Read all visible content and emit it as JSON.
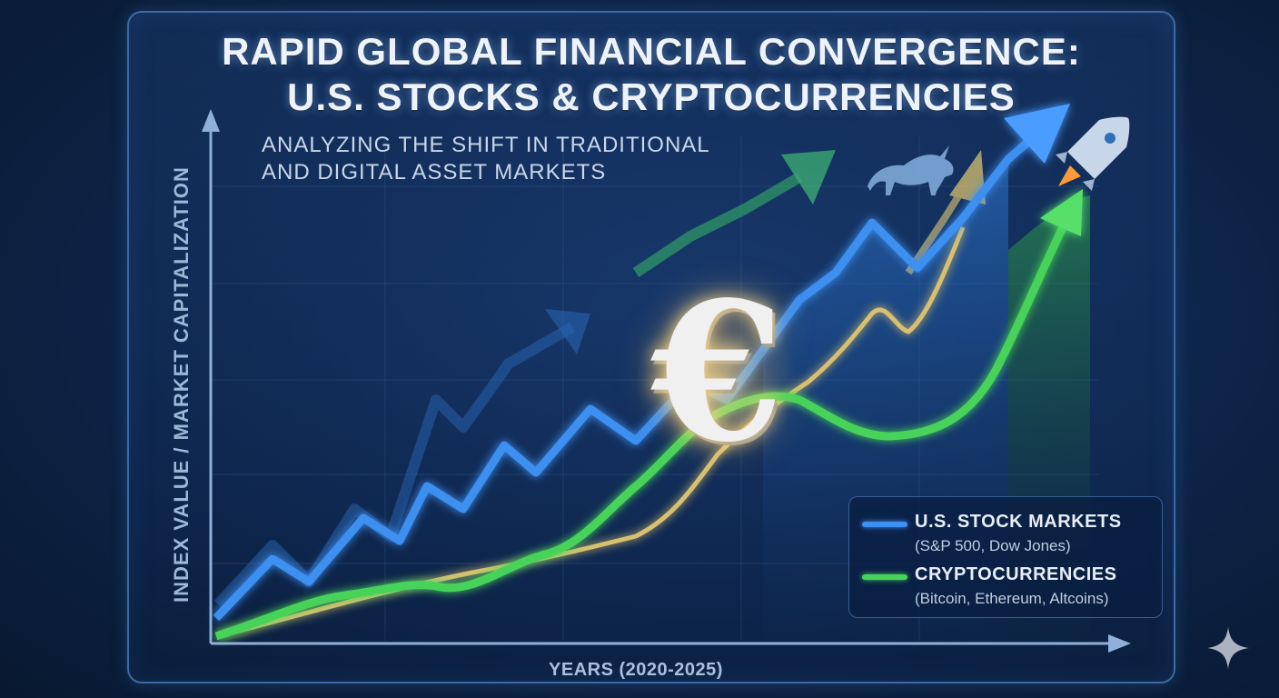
{
  "chart_data": {
    "type": "line",
    "title": [
      "RAPID GLOBAL FINANCIAL CONVERGENCE:",
      "U.S. STOCKS & CRYPTOCURRENCIES"
    ],
    "subtitle": [
      "ANALYZING THE SHIFT IN TRADITIONAL",
      "AND DIGITAL ASSET MARKETS"
    ],
    "xlabel": "YEARS (2020-2025)",
    "ylabel": "INDEX VALUE / MARKET CAPITALIZATION",
    "legend_position": "bottom-right",
    "series": [
      {
        "name": "U.S. STOCK MARKETS",
        "description": "(S&P 500, Dow Jones)",
        "color": "#3d8ff0"
      },
      {
        "name": "CRYPTOCURRENCIES",
        "description": "(Bitcoin, Ethereum, Altcoins)",
        "color": "#47d35a"
      }
    ],
    "grid": true
  },
  "icons": [
    "euro-symbol-icon",
    "bull-icon",
    "rocket-icon",
    "sparkle-icon"
  ],
  "colors": {
    "stock": "#3d8ff0",
    "crypto": "#47d35a",
    "gold": "#d8c070",
    "background": "#0f2850"
  }
}
